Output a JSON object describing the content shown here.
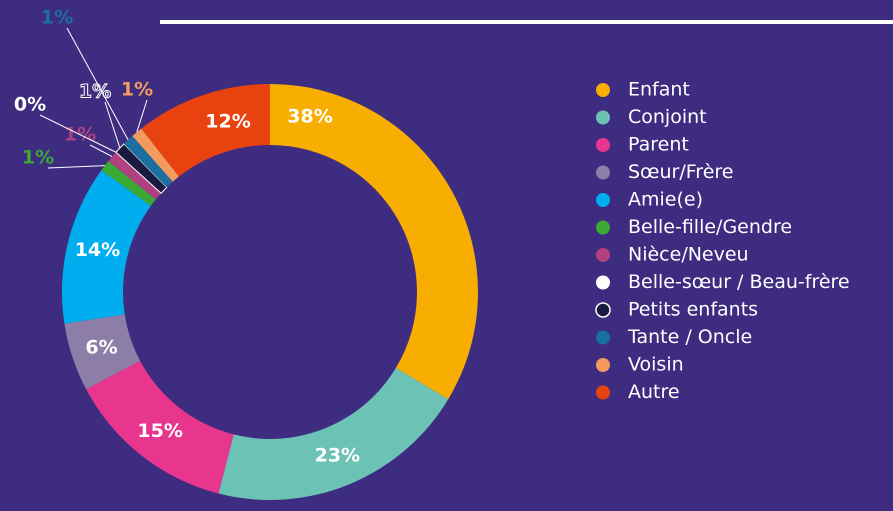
{
  "chart_data": {
    "type": "donut",
    "categories": [
      "Enfant",
      "Conjoint",
      "Parent",
      "Sœur/Frère",
      "Amie(e)",
      "Belle-fille/Gendre",
      "Nièce/Neveu",
      "Belle-sœur / Beau-frère",
      "Petits enfants",
      "Tante / Oncle",
      "Voisin",
      "Autre"
    ],
    "values": [
      38,
      23,
      15,
      6,
      14,
      1,
      1,
      0,
      1,
      1,
      1,
      12
    ],
    "value_labels": [
      "38%",
      "23%",
      "15%",
      "6%",
      "14%",
      "1%",
      "1%",
      "0%",
      "1%",
      "1%",
      "1%",
      "12%"
    ],
    "colors": [
      "#f7ae00",
      "#6cc3b5",
      "#e8368f",
      "#8c7ea6",
      "#00aeef",
      "#3aaa35",
      "#b0407f",
      "#ffffff",
      "#1a1a40",
      "#1b6fa0",
      "#f39a5f",
      "#e8430f"
    ],
    "legend": "right"
  }
}
